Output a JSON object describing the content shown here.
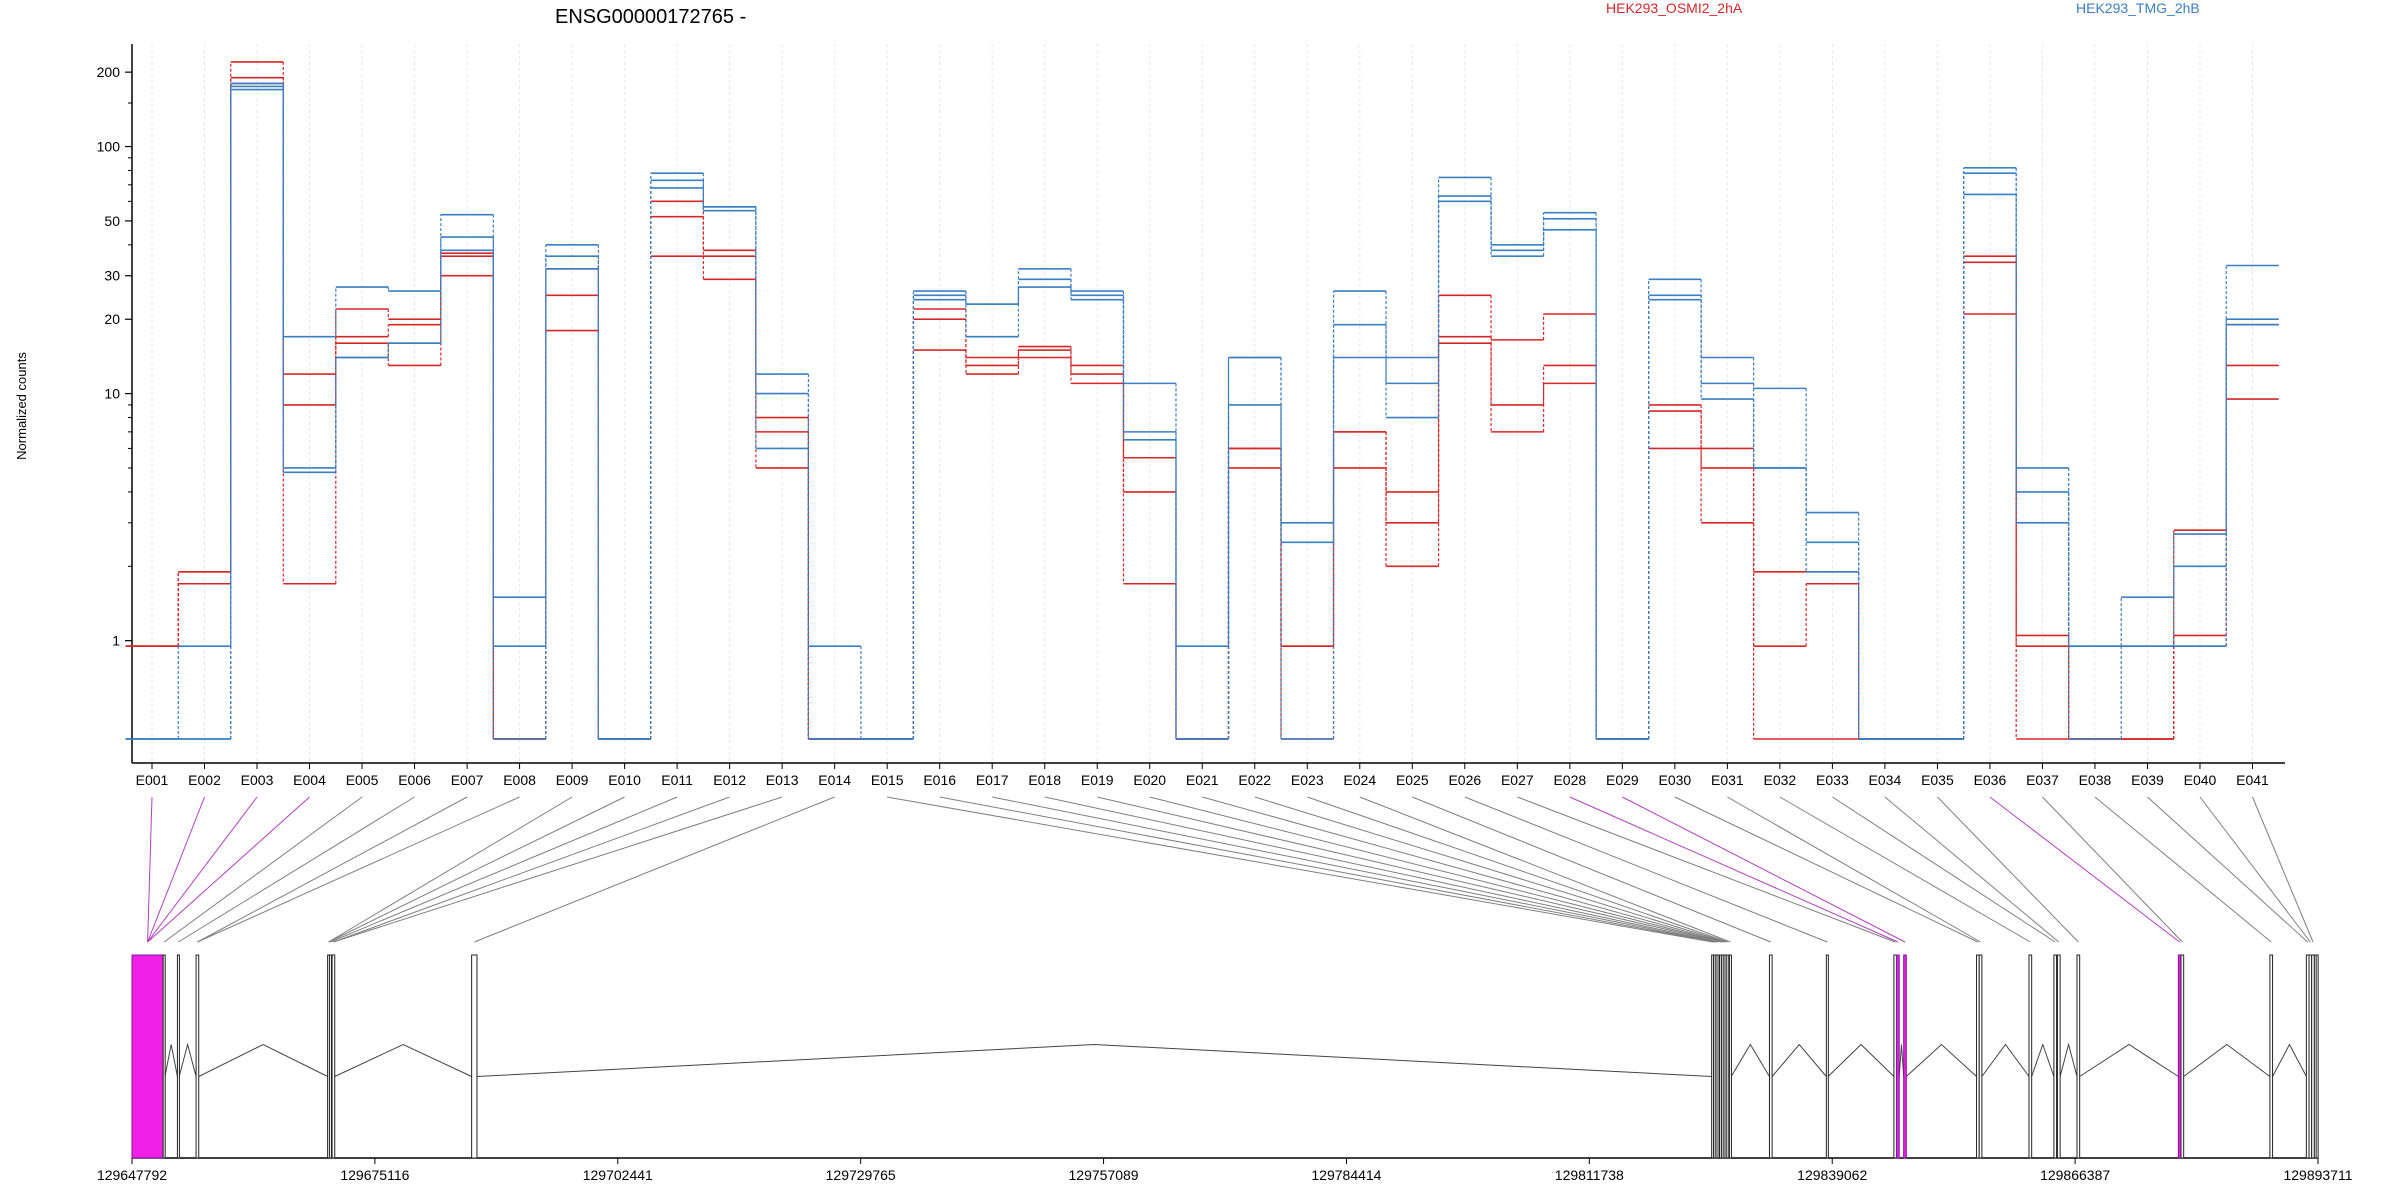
{
  "chart_data": {
    "type": "line",
    "title": "ENSG00000172765 -",
    "ylabel": "Normalized counts",
    "y_scale": "log",
    "ylim": [
      0.4,
      260
    ],
    "y_ticks": [
      1,
      10,
      20,
      30,
      50,
      100,
      200
    ],
    "grid": "vertical lines at each exon",
    "legend": [
      {
        "name": "HEK293_OSMI2_2hA",
        "color": "#d62728"
      },
      {
        "name": "HEK293_TMG_2hB",
        "color": "#3a7fc1"
      }
    ],
    "categories": [
      "E001",
      "E002",
      "E003",
      "E004",
      "E005",
      "E006",
      "E007",
      "E008",
      "E009",
      "E010",
      "E011",
      "E012",
      "E013",
      "E014",
      "E015",
      "E016",
      "E017",
      "E018",
      "E019",
      "E020",
      "E021",
      "E022",
      "E023",
      "E024",
      "E025",
      "E026",
      "E027",
      "E028",
      "E029",
      "E030",
      "E031",
      "E032",
      "E033",
      "E034",
      "E035",
      "E036",
      "E037",
      "E038",
      "E039",
      "E040",
      "E041"
    ],
    "series": [
      {
        "group": "HEK293_OSMI2_2hA",
        "color": "#d62728",
        "values": [
          0.95,
          1.9,
          220,
          12,
          22,
          20,
          37,
          0.4,
          25,
          0.4,
          60,
          38,
          8,
          0.4,
          0.4,
          22,
          14,
          15.5,
          13,
          5.5,
          0.4,
          6,
          0.95,
          7,
          4,
          25,
          16.5,
          21,
          0.4,
          9,
          6,
          1.9,
          1.9,
          0.4,
          0.4,
          36,
          1.05,
          0.4,
          0.4,
          1.05,
          19
        ]
      },
      {
        "group": "HEK293_OSMI2_2hA",
        "color": "#d62728",
        "values": [
          0.95,
          1.9,
          190,
          9,
          17,
          19,
          36,
          0.4,
          32,
          0.4,
          52,
          36,
          7,
          0.4,
          0.4,
          20,
          13,
          15,
          12,
          4,
          0.4,
          6,
          0.95,
          7,
          3,
          17,
          9,
          13,
          0.4,
          8.5,
          5,
          0.95,
          1.7,
          0.4,
          0.4,
          34,
          0.95,
          0.4,
          0.4,
          2.8,
          13
        ]
      },
      {
        "group": "HEK293_OSMI2_2hA",
        "color": "#d62728",
        "values": [
          0.95,
          1.7,
          180,
          1.7,
          16,
          13,
          30,
          0.4,
          18,
          0.4,
          36,
          29,
          5,
          0.4,
          0.4,
          15,
          12,
          14,
          11,
          1.7,
          0.4,
          5,
          0.4,
          5,
          2,
          16,
          7,
          11,
          0.4,
          6,
          3,
          0.4,
          0.4,
          0.4,
          0.4,
          21,
          0.4,
          0.4,
          0.4,
          0.95,
          9.5
        ]
      },
      {
        "group": "HEK293_TMG_2hB",
        "color": "#3a7fc1",
        "values": [
          0.4,
          0.95,
          180,
          17,
          27,
          26,
          53,
          1.5,
          40,
          0.4,
          78,
          57,
          12,
          0.95,
          0.4,
          26,
          23,
          32,
          26,
          11,
          0.95,
          14,
          3,
          26,
          14,
          75,
          40,
          54,
          0.4,
          29,
          14,
          10.5,
          3.3,
          0.4,
          0.4,
          82,
          5,
          0.95,
          1.5,
          2.7,
          33
        ]
      },
      {
        "group": "HEK293_TMG_2hB",
        "color": "#3a7fc1",
        "values": [
          0.4,
          0.4,
          175,
          5,
          14,
          16,
          43,
          0.95,
          36,
          0.4,
          73,
          57,
          10,
          0.4,
          0.4,
          25,
          23,
          29,
          25,
          7,
          0.4,
          14,
          2.5,
          19,
          11,
          63,
          38,
          51,
          0.4,
          25,
          11,
          5,
          2.5,
          0.4,
          0.4,
          78,
          4,
          0.95,
          0.95,
          2,
          20
        ]
      },
      {
        "group": "HEK293_TMG_2hB",
        "color": "#3a7fc1",
        "values": [
          0.4,
          0.4,
          170,
          4.8,
          14,
          16,
          38,
          0.4,
          32,
          0.4,
          68,
          55,
          6,
          0.4,
          0.4,
          24,
          17,
          27,
          24,
          6.5,
          0.4,
          9,
          0.4,
          14,
          8,
          60,
          36,
          46,
          0.4,
          24,
          9.5,
          5,
          1.9,
          0.4,
          0.4,
          64,
          3,
          0.4,
          0.95,
          0.95,
          19
        ]
      }
    ],
    "gene_model_x_ticks": [
      "129647792",
      "129675116",
      "129702441",
      "129729765",
      "129757089",
      "129784414",
      "129811738",
      "129839062",
      "129866387",
      "129893711"
    ],
    "gene_model_range": [
      129647792,
      129893711
    ],
    "exon_genomic_start": [
      129647792,
      129651300,
      129652900,
      129655000,
      129669800,
      129670000,
      129670300,
      129686000,
      129825500,
      129825700,
      129825900,
      129826100,
      129826400,
      129826600,
      129826800,
      129827000,
      129827200,
      129827500,
      129832000,
      129838400,
      129846000,
      129846300,
      129847100,
      129855300,
      129855600,
      129861200,
      129864000,
      129864400,
      129866600,
      129878000,
      129878300,
      129888300,
      129892400,
      129892700,
      129893000,
      129893300,
      129893500
    ],
    "exon_genomic_end": [
      129651300,
      129651500,
      129653100,
      129655300,
      129670000,
      129670200,
      129670600,
      129686600,
      129825700,
      129825900,
      129826100,
      129826300,
      129826600,
      129826800,
      129827000,
      129827200,
      129827400,
      129827700,
      129832300,
      129838600,
      129846300,
      129846600,
      129847400,
      129855600,
      129855900,
      129861500,
      129864300,
      129864700,
      129866900,
      129878300,
      129878600,
      129888600,
      129892700,
      129893000,
      129893300,
      129893600,
      129893711
    ],
    "exon_highlighted": [
      true,
      false,
      false,
      false,
      false,
      false,
      false,
      false,
      false,
      false,
      false,
      false,
      false,
      false,
      false,
      false,
      false,
      false,
      false,
      false,
      false,
      true,
      true,
      false,
      false,
      false,
      false,
      false,
      false,
      true,
      false,
      false,
      false,
      false,
      false,
      false,
      false
    ],
    "exon_to_model": [
      0,
      0,
      0,
      0,
      1,
      2,
      3,
      3,
      4,
      4,
      5,
      6,
      6,
      7,
      8,
      9,
      10,
      11,
      12,
      13,
      14,
      15,
      16,
      17,
      18,
      19,
      20,
      21,
      22,
      23,
      24,
      25,
      26,
      27,
      28,
      29,
      30,
      31,
      32,
      33,
      34
    ]
  }
}
